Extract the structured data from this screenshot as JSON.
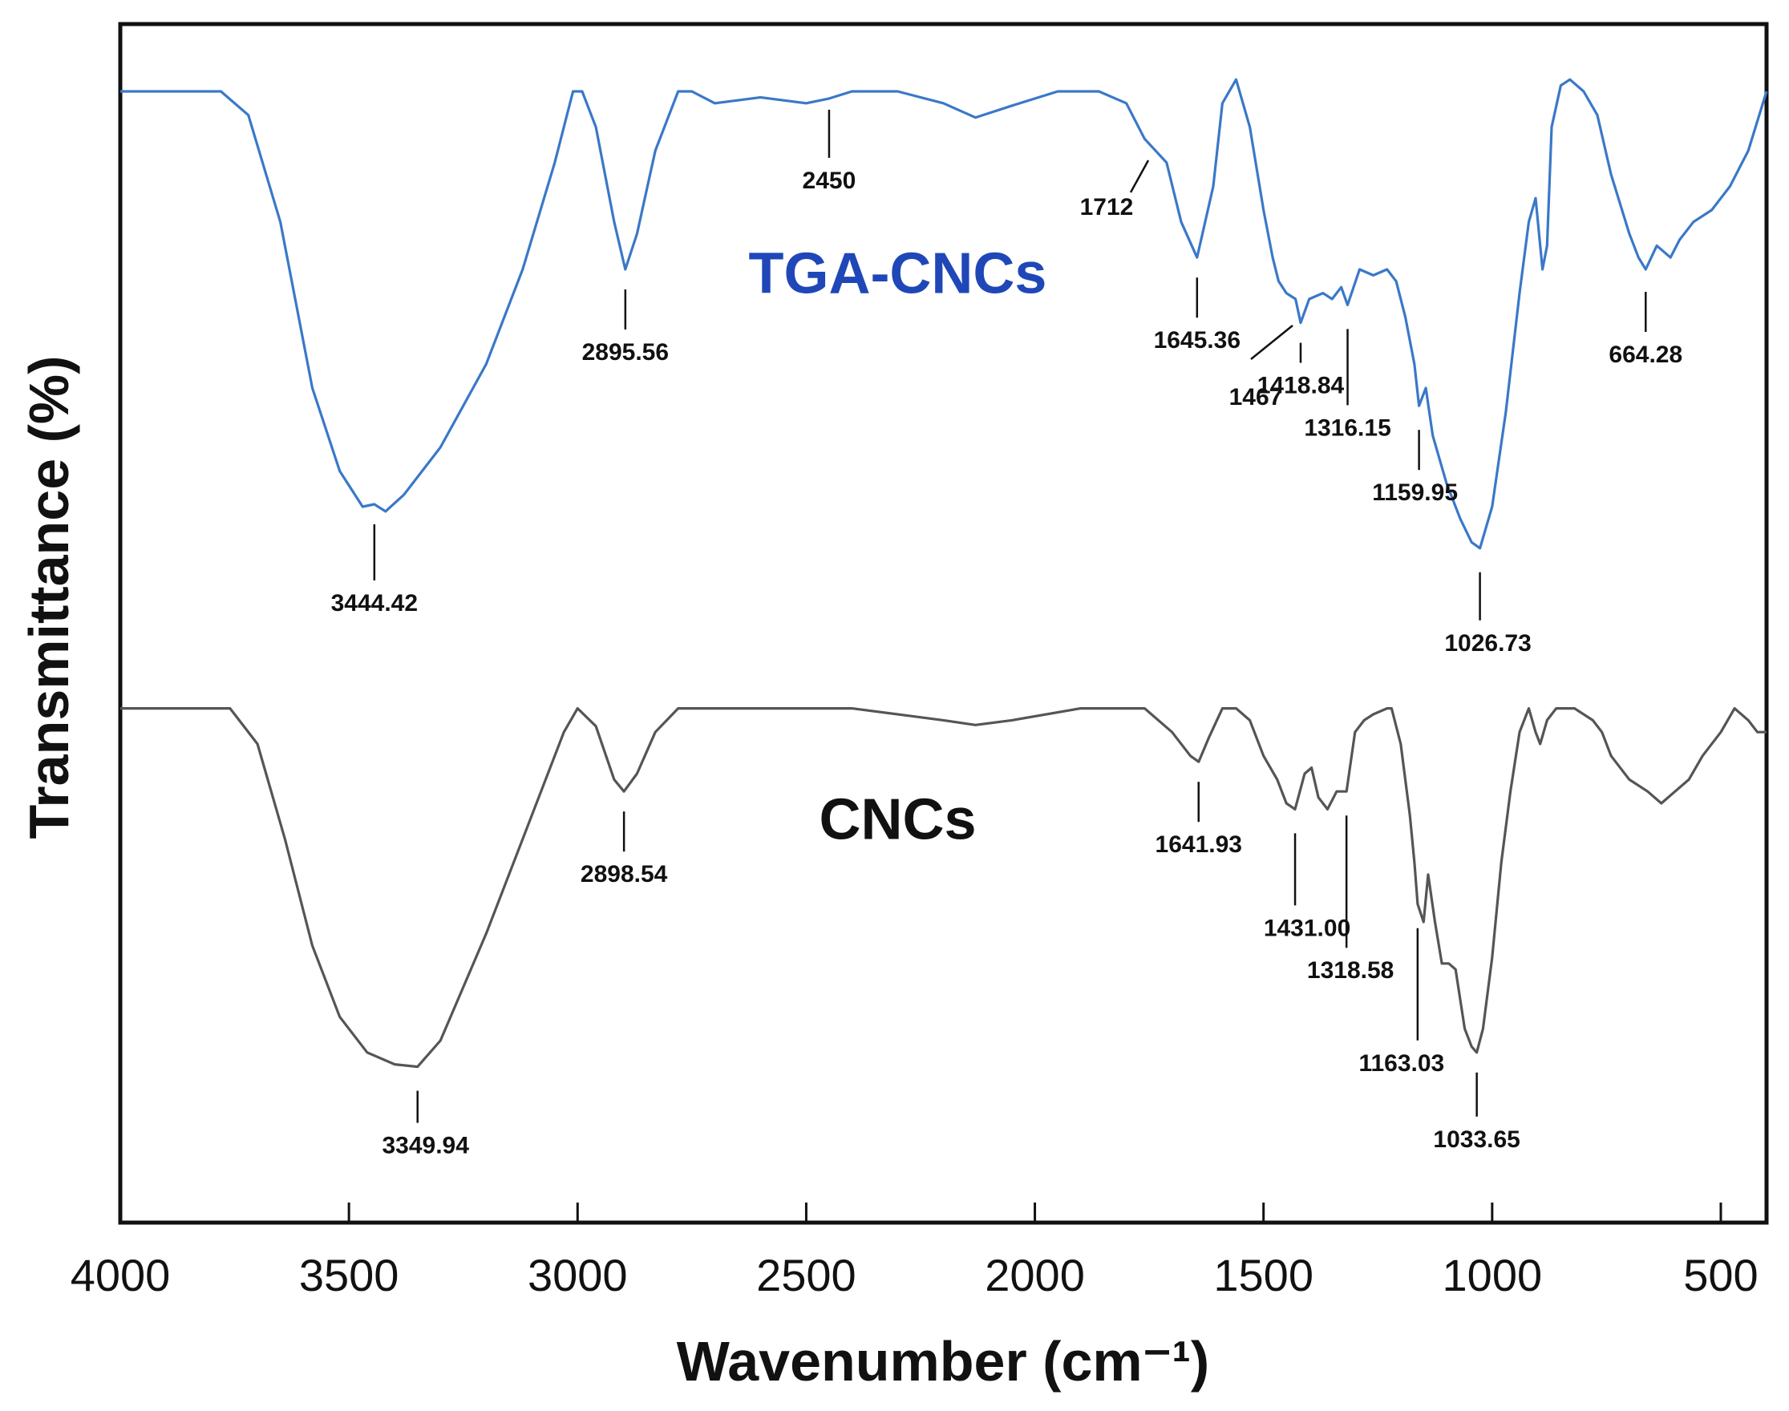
{
  "chart_data": {
    "type": "line",
    "title": "",
    "xlabel": "Wavenumber (cm⁻¹)",
    "ylabel": "Transmittance (%)",
    "xlim": [
      4000,
      400
    ],
    "ylim": [
      0,
      100
    ],
    "x_ticks": [
      4000,
      3500,
      3000,
      2500,
      2000,
      1500,
      1000,
      500
    ],
    "x_tick_labels": [
      "4000",
      "3500",
      "3000",
      "2500",
      "2000",
      "1500",
      "1000",
      "500"
    ],
    "grid": false,
    "colors": {
      "TGA-CNCs": "#3a78c8",
      "CNCs": "#555555",
      "tga_label": "#1f47b8",
      "cnc_label": "#111111"
    },
    "series": [
      {
        "name": "TGA-CNCs",
        "label_position": [
          2300,
          78
        ],
        "points": [
          [
            4000,
            95
          ],
          [
            3780,
            95
          ],
          [
            3720,
            93
          ],
          [
            3650,
            84
          ],
          [
            3580,
            70
          ],
          [
            3520,
            63
          ],
          [
            3470,
            60
          ],
          [
            3444.42,
            60.2
          ],
          [
            3420,
            59.6
          ],
          [
            3380,
            61
          ],
          [
            3300,
            65
          ],
          [
            3200,
            72
          ],
          [
            3120,
            80
          ],
          [
            3050,
            89
          ],
          [
            3010,
            95
          ],
          [
            2990,
            95
          ],
          [
            2960,
            92
          ],
          [
            2920,
            84
          ],
          [
            2895.56,
            80
          ],
          [
            2870,
            83
          ],
          [
            2830,
            90
          ],
          [
            2780,
            95
          ],
          [
            2750,
            95
          ],
          [
            2700,
            94
          ],
          [
            2600,
            94.5
          ],
          [
            2500,
            94
          ],
          [
            2450,
            94.4
          ],
          [
            2400,
            95
          ],
          [
            2300,
            95
          ],
          [
            2200,
            94
          ],
          [
            2130,
            92.8
          ],
          [
            2050,
            93.8
          ],
          [
            1950,
            95
          ],
          [
            1860,
            95
          ],
          [
            1800,
            94
          ],
          [
            1760,
            91
          ],
          [
            1712,
            89
          ],
          [
            1680,
            84
          ],
          [
            1645.36,
            81
          ],
          [
            1610,
            87
          ],
          [
            1590,
            94
          ],
          [
            1560,
            96
          ],
          [
            1530,
            92
          ],
          [
            1500,
            85
          ],
          [
            1480,
            81
          ],
          [
            1467,
            79
          ],
          [
            1450,
            78
          ],
          [
            1430,
            77.5
          ],
          [
            1418.84,
            75.5
          ],
          [
            1400,
            77.5
          ],
          [
            1370,
            78
          ],
          [
            1350,
            77.5
          ],
          [
            1330,
            78.5
          ],
          [
            1316.15,
            77
          ],
          [
            1290,
            80
          ],
          [
            1260,
            79.5
          ],
          [
            1230,
            80
          ],
          [
            1210,
            79
          ],
          [
            1190,
            76
          ],
          [
            1170,
            72
          ],
          [
            1159.95,
            68.5
          ],
          [
            1145,
            70
          ],
          [
            1130,
            66
          ],
          [
            1100,
            62
          ],
          [
            1070,
            59
          ],
          [
            1045,
            57
          ],
          [
            1026.73,
            56.5
          ],
          [
            1000,
            60
          ],
          [
            970,
            68
          ],
          [
            940,
            78
          ],
          [
            920,
            84
          ],
          [
            905,
            86
          ],
          [
            890,
            80
          ],
          [
            880,
            82
          ],
          [
            870,
            92
          ],
          [
            850,
            95.5
          ],
          [
            830,
            96
          ],
          [
            800,
            95
          ],
          [
            770,
            93
          ],
          [
            740,
            88
          ],
          [
            700,
            83
          ],
          [
            680,
            81
          ],
          [
            664.28,
            80
          ],
          [
            640,
            82
          ],
          [
            610,
            81
          ],
          [
            590,
            82.5
          ],
          [
            560,
            84
          ],
          [
            520,
            85
          ],
          [
            480,
            87
          ],
          [
            440,
            90
          ],
          [
            400,
            95
          ]
        ],
        "peaks": [
          {
            "x": 3444.42,
            "label": "3444.42"
          },
          {
            "x": 2895.56,
            "label": "2895.56"
          },
          {
            "x": 2450,
            "label": "2450"
          },
          {
            "x": 1712,
            "label": "1712"
          },
          {
            "x": 1645.36,
            "label": "1645.36"
          },
          {
            "x": 1467,
            "label": "1467"
          },
          {
            "x": 1418.84,
            "label": "1418.84"
          },
          {
            "x": 1316.15,
            "label": "1316.15"
          },
          {
            "x": 1159.95,
            "label": "1159.95"
          },
          {
            "x": 1026.73,
            "label": "1026.73"
          },
          {
            "x": 664.28,
            "label": "664.28"
          }
        ]
      },
      {
        "name": "CNCs",
        "label_position": [
          2300,
          32
        ],
        "points": [
          [
            4000,
            43
          ],
          [
            3760,
            43
          ],
          [
            3700,
            40
          ],
          [
            3640,
            32
          ],
          [
            3580,
            23
          ],
          [
            3520,
            17
          ],
          [
            3460,
            14
          ],
          [
            3400,
            13
          ],
          [
            3349.94,
            12.8
          ],
          [
            3300,
            15
          ],
          [
            3200,
            24
          ],
          [
            3100,
            34
          ],
          [
            3030,
            41
          ],
          [
            3000,
            43
          ],
          [
            2960,
            41.5
          ],
          [
            2920,
            37
          ],
          [
            2898.54,
            36
          ],
          [
            2870,
            37.5
          ],
          [
            2830,
            41
          ],
          [
            2780,
            43
          ],
          [
            2600,
            43
          ],
          [
            2400,
            43
          ],
          [
            2200,
            42
          ],
          [
            2130,
            41.6
          ],
          [
            2050,
            42
          ],
          [
            1900,
            43
          ],
          [
            1760,
            43
          ],
          [
            1700,
            41
          ],
          [
            1660,
            39
          ],
          [
            1641.93,
            38.5
          ],
          [
            1620,
            40.5
          ],
          [
            1590,
            43
          ],
          [
            1560,
            43
          ],
          [
            1530,
            42
          ],
          [
            1500,
            39
          ],
          [
            1470,
            37
          ],
          [
            1450,
            35
          ],
          [
            1431.0,
            34.5
          ],
          [
            1410,
            37.5
          ],
          [
            1395,
            38
          ],
          [
            1380,
            35.5
          ],
          [
            1360,
            34.5
          ],
          [
            1340,
            36
          ],
          [
            1318.58,
            36
          ],
          [
            1300,
            41
          ],
          [
            1280,
            42
          ],
          [
            1260,
            42.5
          ],
          [
            1230,
            43
          ],
          [
            1220,
            43
          ],
          [
            1200,
            40
          ],
          [
            1180,
            34
          ],
          [
            1170,
            30
          ],
          [
            1163.03,
            26.5
          ],
          [
            1150,
            25
          ],
          [
            1140,
            29
          ],
          [
            1125,
            25
          ],
          [
            1110,
            21.5
          ],
          [
            1095,
            21.5
          ],
          [
            1080,
            21
          ],
          [
            1060,
            16
          ],
          [
            1045,
            14.5
          ],
          [
            1033.65,
            14
          ],
          [
            1020,
            16
          ],
          [
            1000,
            22
          ],
          [
            980,
            30
          ],
          [
            960,
            36
          ],
          [
            940,
            41
          ],
          [
            920,
            43
          ],
          [
            905,
            41
          ],
          [
            895,
            40
          ],
          [
            880,
            42
          ],
          [
            860,
            43
          ],
          [
            820,
            43
          ],
          [
            780,
            42
          ],
          [
            760,
            41
          ],
          [
            740,
            39
          ],
          [
            700,
            37
          ],
          [
            660,
            36
          ],
          [
            630,
            35
          ],
          [
            600,
            36
          ],
          [
            570,
            37
          ],
          [
            540,
            39
          ],
          [
            500,
            41
          ],
          [
            470,
            43
          ],
          [
            440,
            42
          ],
          [
            420,
            41
          ],
          [
            400,
            41
          ]
        ],
        "peaks": [
          {
            "x": 3349.94,
            "label": "3349.94"
          },
          {
            "x": 2898.54,
            "label": "2898.54"
          },
          {
            "x": 1641.93,
            "label": "1641.93"
          },
          {
            "x": 1431.0,
            "label": "1431.00"
          },
          {
            "x": 1318.58,
            "label": "1318.58"
          },
          {
            "x": 1163.03,
            "label": "1163.03"
          },
          {
            "x": 1033.65,
            "label": "1033.65"
          }
        ]
      }
    ]
  }
}
